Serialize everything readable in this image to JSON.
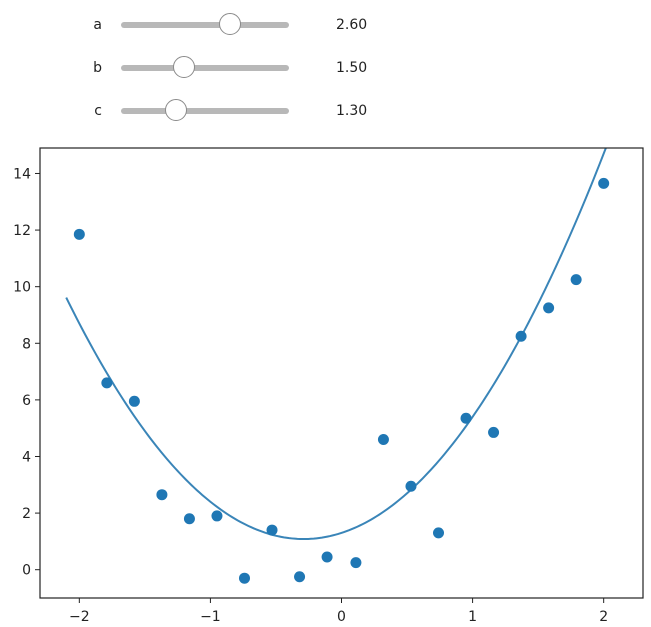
{
  "sliders": [
    {
      "label": "a",
      "value": 2.6,
      "value_text": "2.60",
      "min": 0,
      "max": 4
    },
    {
      "label": "b",
      "value": 1.5,
      "value_text": "1.50",
      "min": 0,
      "max": 4
    },
    {
      "label": "c",
      "value": 1.3,
      "value_text": "1.30",
      "min": 0,
      "max": 4
    }
  ],
  "colors": {
    "points": "#1f77b4",
    "curve": "#3a85b8",
    "slider_track": "#b8b8b8"
  },
  "chart_data": {
    "type": "scatter",
    "title": "",
    "xlabel": "",
    "ylabel": "",
    "xlim": [
      -2.3,
      2.3
    ],
    "ylim": [
      -1.0,
      14.9
    ],
    "xticks": [
      -2,
      -1,
      0,
      1,
      2
    ],
    "xtick_labels": [
      "−2",
      "−1",
      "0",
      "1",
      "2"
    ],
    "yticks": [
      0,
      2,
      4,
      6,
      8,
      10,
      12,
      14
    ],
    "ytick_labels": [
      "0",
      "2",
      "4",
      "6",
      "8",
      "10",
      "12",
      "14"
    ],
    "grid": false,
    "series": [
      {
        "kind": "scatter",
        "x": [
          -2.0,
          -1.79,
          -1.58,
          -1.37,
          -1.16,
          -0.95,
          -0.74,
          -0.53,
          -0.32,
          -0.11,
          0.11,
          0.32,
          0.53,
          0.74,
          0.95,
          1.16,
          1.37,
          1.58,
          1.79,
          2.0
        ],
        "y": [
          11.85,
          6.6,
          5.95,
          2.65,
          1.8,
          1.9,
          -0.3,
          1.4,
          -0.25,
          0.45,
          0.25,
          4.6,
          2.95,
          1.3,
          5.35,
          4.85,
          8.25,
          9.25,
          10.25,
          13.65
        ]
      },
      {
        "kind": "line",
        "formula": "a*x^2 + b*x + c",
        "x_range": [
          -2.1,
          2.05
        ]
      }
    ]
  }
}
